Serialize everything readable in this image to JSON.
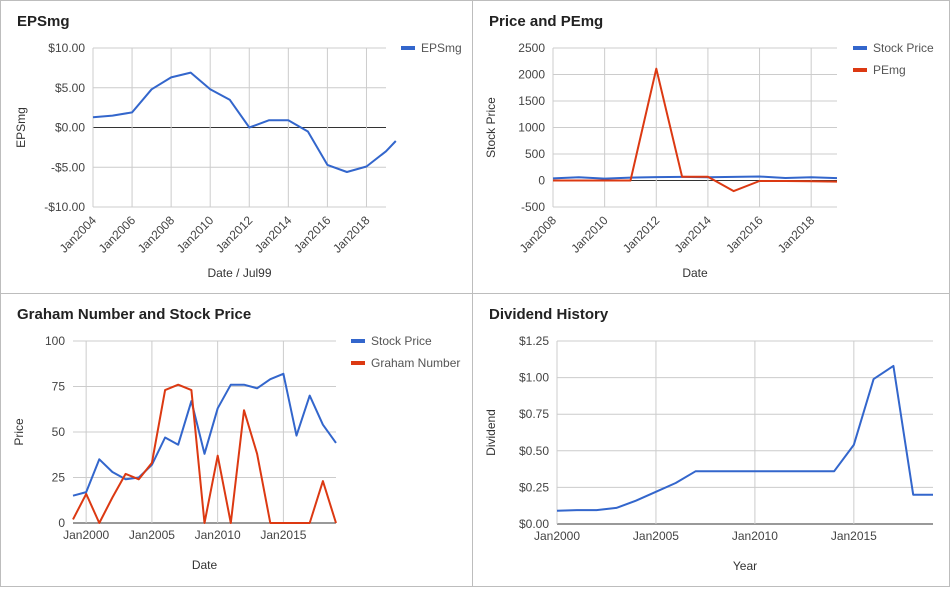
{
  "chart_data": [
    {
      "type": "line",
      "title": "EPSmg",
      "xlabel": "Date / Jul99",
      "ylabel": "EPSmg",
      "x_tick_labels": [
        "Jan2004",
        "Jan2006",
        "Jan2008",
        "Jan2010",
        "Jan2012",
        "Jan2014",
        "Jan2016",
        "Jan2018"
      ],
      "y_tick_labels": [
        "$10.00",
        "$5.00",
        "$0.00",
        "-$5.00",
        "-$10.00"
      ],
      "xlim": [
        2004,
        2019
      ],
      "ylim": [
        -10,
        10
      ],
      "y_ticks": [
        10,
        5,
        0,
        -5,
        -10
      ],
      "grid": true,
      "legend": "top-right",
      "series": [
        {
          "name": "EPSmg",
          "color": "#3366cc",
          "x": [
            2004,
            2005,
            2006,
            2007,
            2008,
            2009,
            2010,
            2011,
            2012,
            2013,
            2014,
            2015,
            2016,
            2017,
            2018,
            2019,
            2019.5
          ],
          "values": [
            1.3,
            1.5,
            1.9,
            4.8,
            6.3,
            6.9,
            4.8,
            3.5,
            0.0,
            0.9,
            0.9,
            -0.5,
            -4.7,
            -5.6,
            -4.9,
            -3.0,
            -1.7
          ]
        }
      ]
    },
    {
      "type": "line",
      "title": "Price and PEmg",
      "xlabel": "Date",
      "ylabel": "Stock Price",
      "x_tick_labels": [
        "Jan2008",
        "Jan2010",
        "Jan2012",
        "Jan2014",
        "Jan2016",
        "Jan2018"
      ],
      "y_tick_labels": [
        "2500",
        "2000",
        "1500",
        "1000",
        "500",
        "0",
        "-500"
      ],
      "xlim": [
        2008,
        2019
      ],
      "ylim": [
        -500,
        2500
      ],
      "y_ticks": [
        2500,
        2000,
        1500,
        1000,
        500,
        0,
        -500
      ],
      "grid": true,
      "legend": "top-right",
      "series": [
        {
          "name": "Stock Price",
          "color": "#3366cc",
          "x": [
            2008,
            2009,
            2010,
            2011,
            2012,
            2013,
            2014,
            2015,
            2016,
            2017,
            2018,
            2019
          ],
          "values": [
            40,
            60,
            35,
            55,
            65,
            68,
            62,
            68,
            75,
            48,
            60,
            45
          ]
        },
        {
          "name": "PEmg",
          "color": "#dc3912",
          "x": [
            2008,
            2009,
            2010,
            2011,
            2012,
            2013,
            2014,
            2015,
            2016,
            2017,
            2018,
            2019
          ],
          "values": [
            0,
            0,
            0,
            0,
            2110,
            70,
            70,
            -200,
            -10,
            -10,
            -15,
            -20
          ]
        }
      ]
    },
    {
      "type": "line",
      "title": "Graham Number and Stock Price",
      "xlabel": "Date",
      "ylabel": "Price",
      "x_tick_labels": [
        "Jan2000",
        "Jan2005",
        "Jan2010",
        "Jan2015"
      ],
      "y_tick_labels": [
        "100",
        "75",
        "50",
        "25",
        "0"
      ],
      "xlim": [
        1999,
        2019
      ],
      "ylim": [
        0,
        100
      ],
      "y_ticks": [
        100,
        75,
        50,
        25,
        0
      ],
      "grid": true,
      "legend": "top-right",
      "series": [
        {
          "name": "Stock Price",
          "color": "#3366cc",
          "x": [
            1999,
            2000,
            2001,
            2002,
            2003,
            2004,
            2005,
            2006,
            2007,
            2008,
            2009,
            2010,
            2011,
            2012,
            2013,
            2014,
            2015,
            2016,
            2017,
            2018,
            2019
          ],
          "values": [
            15,
            17,
            35,
            28,
            24,
            25,
            32,
            47,
            43,
            67,
            38,
            63,
            76,
            76,
            74,
            79,
            82,
            48,
            70,
            54,
            44
          ]
        },
        {
          "name": "Graham Number",
          "color": "#dc3912",
          "x": [
            1999,
            2000,
            2001,
            2002,
            2003,
            2004,
            2005,
            2006,
            2007,
            2008,
            2009,
            2010,
            2011,
            2012,
            2013,
            2014,
            2015,
            2016,
            2017,
            2018,
            2019
          ],
          "values": [
            2,
            16,
            0,
            14,
            27,
            24,
            33,
            73,
            76,
            73,
            0,
            37,
            0,
            62,
            38,
            0,
            0,
            0,
            0,
            23,
            0
          ]
        }
      ]
    },
    {
      "type": "line",
      "title": "Dividend History",
      "xlabel": "Year",
      "ylabel": "Dividend",
      "x_tick_labels": [
        "Jan2000",
        "Jan2005",
        "Jan2010",
        "Jan2015"
      ],
      "y_tick_labels": [
        "$1.25",
        "$1.00",
        "$0.75",
        "$0.50",
        "$0.25",
        "$0.00"
      ],
      "xlim": [
        2000,
        2019
      ],
      "ylim": [
        0,
        1.25
      ],
      "y_ticks": [
        1.25,
        1.0,
        0.75,
        0.5,
        0.25,
        0
      ],
      "grid": true,
      "series": [
        {
          "name": "",
          "color": "#3366cc",
          "x": [
            2000,
            2001,
            2002,
            2003,
            2004,
            2005,
            2006,
            2007,
            2008,
            2009,
            2010,
            2011,
            2012,
            2013,
            2014,
            2015,
            2016,
            2017,
            2018,
            2019
          ],
          "values": [
            0.09,
            0.095,
            0.095,
            0.11,
            0.16,
            0.22,
            0.28,
            0.36,
            0.36,
            0.36,
            0.36,
            0.36,
            0.36,
            0.36,
            0.36,
            0.54,
            0.99,
            1.08,
            0.2,
            0.2
          ]
        }
      ]
    }
  ]
}
